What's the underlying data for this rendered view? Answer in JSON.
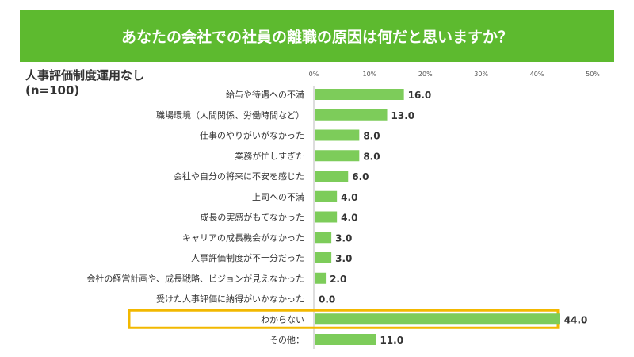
{
  "header": {
    "title": "あなたの会社での社員の離職の原因は何だと思いますか？"
  },
  "subtitle": {
    "line1": "人事評価制度運用なし",
    "line2": "(n=100)"
  },
  "colors": {
    "header": "#5dba2f",
    "bar": "#7dcc5a",
    "highlight": "#f2b800"
  },
  "chart_data": {
    "type": "bar",
    "orientation": "horizontal",
    "categories": [
      "給与や待遇への不満",
      "職場環境（人間関係、労働時間など）",
      "仕事のやりがいがなかった",
      "業務が忙しすぎた",
      "会社や自分の将来に不安を感じた",
      "上司への不満",
      "成長の実感がもてなかった",
      "キャリアの成長機会がなかった",
      "人事評価制度が不十分だった",
      "会社の経営計画や、成長戦略、ビジョンが見えなかった",
      "受けた人事評価に納得がいかなかった",
      "わからない",
      "その他："
    ],
    "values": [
      16.0,
      13.0,
      8.0,
      8.0,
      6.0,
      4.0,
      4.0,
      3.0,
      3.0,
      2.0,
      0.0,
      44.0,
      11.0
    ],
    "value_labels": [
      "16.0",
      "13.0",
      "8.0",
      "8.0",
      "6.0",
      "4.0",
      "4.0",
      "3.0",
      "3.0",
      "2.0",
      "0.0",
      "44.0",
      "11.0"
    ],
    "xlim": [
      0,
      50
    ],
    "ticks": [
      "0%",
      "10%",
      "20%",
      "30%",
      "40%",
      "50%"
    ],
    "highlighted_category": "わからない",
    "grid": false
  }
}
